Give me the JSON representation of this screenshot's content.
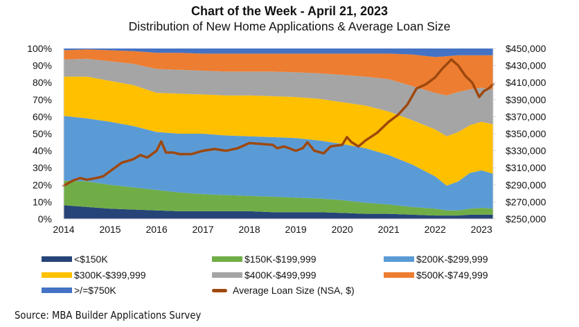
{
  "chart_data": {
    "type": "area",
    "title": "Chart of the Week - April 21, 2023",
    "subtitle": "Distribution of New Home Applications & Average Loan Size",
    "x_ticks": [
      "2014",
      "2015",
      "2016",
      "2017",
      "2018",
      "2019",
      "2020",
      "2021",
      "2022",
      "2023"
    ],
    "xlim": [
      2014,
      2023.25
    ],
    "y_left": {
      "ticks": [
        "0%",
        "10%",
        "20%",
        "30%",
        "40%",
        "50%",
        "60%",
        "70%",
        "80%",
        "90%",
        "100%"
      ],
      "ylim": [
        0,
        100
      ]
    },
    "y_right": {
      "ticks": [
        "$250,000",
        "$270,000",
        "$290,000",
        "$310,000",
        "$330,000",
        "$350,000",
        "$370,000",
        "$390,000",
        "$410,000",
        "$430,000",
        "$450,000"
      ],
      "ylim": [
        250000,
        450000
      ]
    },
    "x": [
      2014.0,
      2014.5,
      2015.0,
      2015.5,
      2016.0,
      2016.5,
      2017.0,
      2017.5,
      2018.0,
      2018.5,
      2019.0,
      2019.5,
      2020.0,
      2020.5,
      2021.0,
      2021.5,
      2022.0,
      2022.25,
      2022.5,
      2022.75,
      2023.0,
      2023.25
    ],
    "series": [
      {
        "name": "<$150K",
        "color": "#264478",
        "values": [
          8,
          7,
          6,
          5.5,
          5,
          4.5,
          4.5,
          4.5,
          4.5,
          4,
          4,
          4,
          3.5,
          3,
          3,
          2.5,
          2,
          2,
          2,
          2.5,
          2.5,
          2.5
        ]
      },
      {
        "name": "$150K-$199,999",
        "color": "#70ad47",
        "values": [
          14.5,
          15,
          14,
          13,
          12,
          11,
          10,
          9.5,
          9,
          9,
          8.5,
          8,
          7.5,
          6.5,
          5.5,
          4.5,
          4,
          3,
          3,
          3.5,
          4,
          3.5
        ]
      },
      {
        "name": "$200K-$299,999",
        "color": "#5b9bd5",
        "values": [
          38,
          37,
          37,
          36,
          34,
          34.5,
          35.5,
          35,
          35,
          35,
          35,
          34,
          33,
          32,
          29,
          25,
          19,
          14.5,
          17,
          21,
          22,
          20.5
        ]
      },
      {
        "name": "$300K-$399,999",
        "color": "#ffc000",
        "values": [
          23,
          24.5,
          24,
          24,
          23,
          23.5,
          23,
          23.5,
          24,
          24,
          24,
          24.5,
          24.5,
          25,
          25.5,
          26,
          27.5,
          29,
          29,
          28,
          28.5,
          29
        ]
      },
      {
        "name": "$400K-$499,999",
        "color": "#a5a5a5",
        "values": [
          10,
          10.5,
          11.5,
          12.5,
          14,
          14,
          14,
          14,
          14,
          14.5,
          14.5,
          15,
          16,
          17,
          19,
          20,
          21.5,
          24,
          23.5,
          21,
          20,
          20.5
        ]
      },
      {
        "name": "$500K-$749,999",
        "color": "#ed7d31",
        "values": [
          5.5,
          5.5,
          6.5,
          7.5,
          9.5,
          10,
          10,
          10.5,
          10.5,
          10.5,
          11,
          11.5,
          12.5,
          13.5,
          15,
          18.5,
          21,
          23,
          21.5,
          20,
          19,
          20
        ]
      },
      {
        "name": ">/=$750K",
        "color": "#4472c4",
        "values": [
          1,
          0.5,
          1,
          1.5,
          2.5,
          2.5,
          3,
          3,
          3,
          3,
          3,
          3,
          3,
          3,
          3,
          3.5,
          5,
          4.5,
          4,
          4,
          4,
          4
        ]
      }
    ],
    "line_series": {
      "name": "Average Loan Size (NSA, $)",
      "color": "#9e480e",
      "x": [
        2014.0,
        2014.2,
        2014.35,
        2014.5,
        2014.7,
        2014.85,
        2015.0,
        2015.1,
        2015.25,
        2015.5,
        2015.65,
        2015.8,
        2016.0,
        2016.1,
        2016.2,
        2016.35,
        2016.5,
        2016.75,
        2017.0,
        2017.25,
        2017.5,
        2017.75,
        2018.0,
        2018.25,
        2018.5,
        2018.6,
        2018.75,
        2019.0,
        2019.15,
        2019.25,
        2019.4,
        2019.6,
        2019.75,
        2020.0,
        2020.1,
        2020.2,
        2020.35,
        2020.5,
        2020.75,
        2021.0,
        2021.2,
        2021.4,
        2021.6,
        2021.8,
        2022.0,
        2022.15,
        2022.35,
        2022.5,
        2022.65,
        2022.8,
        2022.95,
        2023.05,
        2023.15,
        2023.25
      ],
      "values": [
        289000,
        295000,
        298000,
        296000,
        298000,
        300000,
        306000,
        310000,
        316000,
        320000,
        325000,
        322000,
        330000,
        341000,
        328000,
        328000,
        326000,
        326000,
        330000,
        332000,
        330000,
        333000,
        339000,
        338000,
        337000,
        333000,
        335000,
        330000,
        333000,
        340000,
        330000,
        327000,
        335000,
        337000,
        346000,
        340000,
        335000,
        342000,
        351000,
        364000,
        372000,
        384000,
        403000,
        408000,
        416000,
        426000,
        437000,
        430000,
        418000,
        410000,
        393000,
        400000,
        403000,
        408000
      ]
    },
    "legend": [
      "<$150K",
      "$150K-$199,999",
      "$200K-$299,999",
      "$300K-$399,999",
      "$400K-$499,999",
      "$500K-$749,999",
      ">/=$750K",
      "Average Loan Size (NSA, $)"
    ],
    "legend_placement": "bottom",
    "grid": false
  },
  "source": "Source: MBA Builder Applications Survey"
}
